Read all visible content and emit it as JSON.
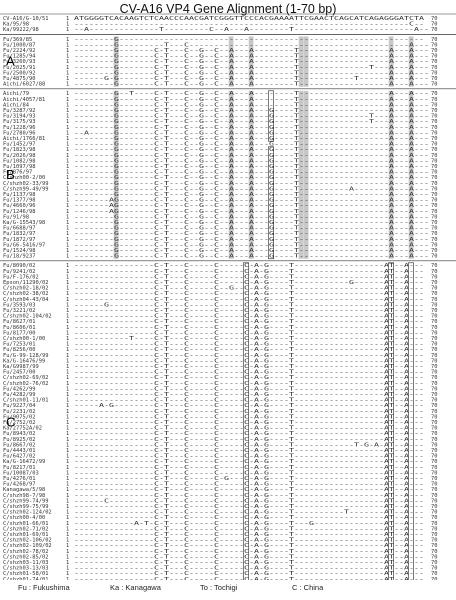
{
  "title": "CV-A16 VP4 Gene Alignment (1-70 bp)",
  "reference": {
    "name": "CV-A16/G-10/51",
    "start": "1",
    "end": "70",
    "sequence": "ATGGGGTCACAAGTCTCAACCCAACGATCGGGTTCCCACGAAAATTCGAACTCAGCATCAGAGGGATCTA"
  },
  "groups": [
    {
      "label": "",
      "rows": [
        {
          "name": "Ka/95/98",
          "seq": "-------------------------------------------------------------------C--"
        },
        {
          "name": "Ka/99222/98",
          "seq": "--A--------------T---------C--A---A--------T------------------------A--"
        }
      ]
    },
    {
      "label": "A",
      "rows": [
        {
          "name": "Fu/369/85",
          "seq": "--------G-------------------------------------------------------------"
        },
        {
          "name": "Fu/1000/87",
          "seq": "--------G---------T---C--------------------------------------------A---"
        },
        {
          "name": "Fu/2224/92",
          "seq": "--------G-------C-T---C--G--C--A---A--------T------------------A---A---"
        },
        {
          "name": "Fu/1285/94",
          "seq": "--------G-------C-T---C--G--C--A---A--------T------------------A---A---"
        },
        {
          "name": "Fu/3260/93",
          "seq": "--------G-------C-T---C--G--C--A---A--------T------------------A---A---"
        },
        {
          "name": "Fu/2025/91",
          "seq": "--------G-------C-T---C--G--C--A---A--------T--------------T---A---A---"
        },
        {
          "name": "Fu/2500/92",
          "seq": "--------G-------C-T---C--G--C--A---A--------T------------------A---A---"
        },
        {
          "name": "Fu/4875/90",
          "seq": "------G-G-------C-T---C--G--C--A---A--------T-----------T------A---A---"
        },
        {
          "name": "Aichi/6027/88",
          "seq": "--------G-------C-T---C--G--C--A---A--------T------------------A---A---"
        }
      ]
    },
    {
      "label": "B",
      "rows": [
        {
          "name": "Aichi/79",
          "seq": "--------G--T----C-T---C--G--C--A---A--------T------------------A---A---"
        },
        {
          "name": "Aichi/4057/81",
          "seq": "--------G-------C-T---C--G--C--A---A--------T------------------A---A---"
        },
        {
          "name": "Aichi/84",
          "seq": "--------G-------C-T---C--G--C--A---A--------T------------------A---A---"
        },
        {
          "name": "Fu/3287/92",
          "seq": "--------G-------C-T---C--G--C--A---A---G----T------------------A---A---"
        },
        {
          "name": "Fu/3194/93",
          "seq": "--------G-------C-T---C--G--C--A---A---G----T--------------T---A---A---"
        },
        {
          "name": "Fu/3175/93",
          "seq": "--------G-------C-T---C--G--C--A---A---G----T--------------T---A---A---"
        },
        {
          "name": "Fu/1228/96",
          "seq": "--------G-------C-T---C--G--C--A---A---G----T------------------A---A---"
        },
        {
          "name": "Fu/2780/96",
          "seq": "--A-----G-------C-T---C--G--C--A---A---G----T------------------A---A---"
        },
        {
          "name": "Aichi/1766/81",
          "seq": "--------G-------C-T---C--G--C--A---A---G----T------------------A---A---"
        },
        {
          "name": "Fu/1452/97",
          "seq": "--------G-------C-T---C--G--C--A---A---G----T------------------A---A---"
        },
        {
          "name": "Fu/1823/98",
          "seq": "--------G-------C-T---C--G--C--A---A---G----T------------------A---A---"
        },
        {
          "name": "Fu/2026/98",
          "seq": "--------G-------C-T---C--G--C--A---A---G----T------------------A---A---"
        },
        {
          "name": "Fu/1082/98",
          "seq": "--------G-------C-T---C--G--C--A---A---G----T------------------A---A---"
        },
        {
          "name": "Fu/1097/98",
          "seq": "--------G-------C-T---C--G--C--A---A---G----T------------------A---A---"
        },
        {
          "name": "Fu/876/97",
          "seq": "--------G-------C-T---C--G--C--A---A---G----T------------------A---A---"
        },
        {
          "name": "C/shzh00-2/00",
          "seq": "--------G-------C-T---C--G--C--A---A---G----T------------------A---A---"
        },
        {
          "name": "C/shzh02-33/99",
          "seq": "--------G-------C-T---C--G--C--A---A---G----T------------------A---A---"
        },
        {
          "name": "C/shzh99-49/99",
          "seq": "--------G-------C-T---C--G--C--A---A---G----T----------A-------A---A---"
        },
        {
          "name": "Fu/1137/98",
          "seq": "--------G-------C-T---C--G--C--A---A---G----T------------------A---A---"
        },
        {
          "name": "Fu/1377/98",
          "seq": "-------AG-------C-T---C--G--C--A---A---G----T------------------A---A---"
        },
        {
          "name": "Fu/4660/96",
          "seq": "-------AG-------C-T---C--G--C--A---A---G----T------------------A---A---"
        },
        {
          "name": "Fu/1246/98",
          "seq": "-------AG-------C-T---C--G--C--A---A---G----T------------------A---A---"
        },
        {
          "name": "Fu/91/98",
          "seq": "--------G-------C-T---C--G--C--A---A---G----T------------------A---A---"
        },
        {
          "name": "Ka/G-15543/98",
          "seq": "--------G-------C-T---C--G--C--A---A---G----T------------------A---A---"
        },
        {
          "name": "Fu/6688/97",
          "seq": "--------G-------C-T---C--G--C--A---A---G----T------------------A---A---"
        },
        {
          "name": "Fu/1832/97",
          "seq": "--------G-------C-T---C--G--C--A---A---G----T------------------A---A---"
        },
        {
          "name": "Fu/1872/97",
          "seq": "--------G-------C-T---C--G--C--A---A---G----T------------------A---A---"
        },
        {
          "name": "Fu/G6-5416/97",
          "seq": "--------G-------C-T---C--G--C--A---A---G----T------------------A---A---"
        },
        {
          "name": "Fu/1524/98",
          "seq": "--------G-------C-T---C--G--C--A---A---G----T------------------A---A---"
        },
        {
          "name": "Fu/18/9237",
          "seq": "--------G-------C-T---C--G--C--A---A---G----T------------------A---A---"
        }
      ]
    },
    {
      "label": "C",
      "rows": [
        {
          "name": "Fu/8090/02",
          "seq": "----------------C-T---C-----C-----C-A-G----T------------------AT--A---"
        },
        {
          "name": "Fu/9241/02",
          "seq": "----------------C-T---C-----C-----C-A-G----T------------------AT--A---"
        },
        {
          "name": "Fu/F-176/02",
          "seq": "----------------C-T---C-----C-----C-A-G----T------------------AT--A---"
        },
        {
          "name": "Epson/11290/02",
          "seq": "----------------C-T---C-----C-----C-A-G----T-----------G------AT--A---"
        },
        {
          "name": "C/shzh02-18/02",
          "seq": "----------------C-T---C-----C--G--C-A-G----T------------------AT--A---"
        },
        {
          "name": "C/shzh02-38/02",
          "seq": "----------------C-T---C-----C-----C-A-G----T------------------AT--A---"
        },
        {
          "name": "C/shzh04-43/04",
          "seq": "----------------C-T---C-----C-----C-A-G----T------------------AT--A---"
        },
        {
          "name": "Fu/3593/03",
          "seq": "------G---------C-T---C-----C-----C-A-G----T------------------AT--A---"
        },
        {
          "name": "Fu/3221/02",
          "seq": "----------------C-T---C-----C-----C-A-G----T------------------AT--A---"
        },
        {
          "name": "C/shzh02-104/02",
          "seq": "----------------C-T---C-----C-----C-A-G----T------------------AT--A---"
        },
        {
          "name": "Fu/8627/01",
          "seq": "----------------C-T---C-----C-----C-A-G----T------------------AT--A---"
        },
        {
          "name": "Fu/8606/01",
          "seq": "----------------C-T---C-----C-----C-A-G----T------------------AT--A---"
        },
        {
          "name": "Fu/8177/00",
          "seq": "----------------C-T---C-----C-----C-A-G----T------------------AT--A---"
        },
        {
          "name": "C/shzh00-1/00",
          "seq": "-----------T----C-T---C-----C-----C-A-G----T------------------AT--A---"
        },
        {
          "name": "Fu/7253/01",
          "seq": "----------------C-T---C-----C-----C-A-G----T------------------AT--A---"
        },
        {
          "name": "Fu/8256/00",
          "seq": "----------------C-T---C-----C-----C-A-G----T------------------AT--A---"
        },
        {
          "name": "Fu/G-99-128/99",
          "seq": "----------------C-T---C-----C-----C-A-G----T------------------AT--A---"
        },
        {
          "name": "Ka/G-16476/99",
          "seq": "----------------C-T---C-----C-----C-A-G----T------------------AT--A---"
        },
        {
          "name": "Ka/G9987/99",
          "seq": "----------------C-T---C-----C-----C-A-G----T------------------AT--A---"
        },
        {
          "name": "Fu/2457/00",
          "seq": "----------------C-T---C-----C-----C-A-G----T------------------AT--A---"
        },
        {
          "name": "C/shzh02-69/02",
          "seq": "----------------C-T---C-----C-----C-A-G----T------------------AT--A---"
        },
        {
          "name": "C/shzh02-76/02",
          "seq": "----------------C-T---C-----C-----C-A-G----T------------------AT--A---"
        },
        {
          "name": "Fu/4262/99",
          "seq": "----------------C-T---C-----C-----C-A-G----T------------------AT--A---"
        },
        {
          "name": "Fu/4282/99",
          "seq": "----------------C-T---C-----C-----C-A-G----T------------------AT--A---"
        },
        {
          "name": "C/shzh01-11/01",
          "seq": "----------------C-T---C-----C-----C-A-G----T------------------AT--A---"
        },
        {
          "name": "Fu/9227/04",
          "seq": "-----A-G--------C-T---C-----C-----C-A-G----T------------------AT--A---"
        },
        {
          "name": "Fu/2231/02",
          "seq": "----------------C-T---C-----C-----C-A-G----T------------------AT--A---"
        },
        {
          "name": "Fu/9075/02",
          "seq": "----------------C-T---C-----C-----C-A-G----T------------------AT--A---"
        },
        {
          "name": "Fu/2752/02",
          "seq": "----------------C-T---C-----C-----C-A-G----T------------------AT--A---"
        },
        {
          "name": "Ka/27752A/02",
          "seq": "----------------C-T---C-----C-----C-A-G----T------------------AT--A---"
        },
        {
          "name": "Fu/8943/02",
          "seq": "----------------C-T---C-----C-----C-A-G----T------------------AT--A---"
        },
        {
          "name": "Fu/8925/02",
          "seq": "----------------C-T---C-----C-----C-A-G----T------------------AT--A---"
        },
        {
          "name": "Fu/8667/02",
          "seq": "----------------C-T---C-----C-----C-A-G----T------------T-G-A-AT--A---"
        },
        {
          "name": "Fu/4443/01",
          "seq": "----------------C-T---C-----C-----C-A-G----T------------------AT--A---"
        },
        {
          "name": "Fu/6427/02",
          "seq": "----------------C-T---C-----C-----C-A-G----T------------------AT--A---"
        },
        {
          "name": "Ka/G-16472/99",
          "seq": "----------------C-T---C-----C-----C-A-G----T------------------AT--A---"
        },
        {
          "name": "Fu/8217/01",
          "seq": "----------------C-T---C-----C-----C-A-G----T------------------AT--A---"
        },
        {
          "name": "Fu/10087/03",
          "seq": "----------------C-T---C-----C-----C-A-G----T------------------AT--A---"
        },
        {
          "name": "Fu/4276/01",
          "seq": "----------------C-T---C-----C-G---C-A-G----T------------------AT--A---"
        },
        {
          "name": "Fu/4268/97",
          "seq": "----------------C-T---C-----C-----C-A-G----T------------------AT--A---"
        },
        {
          "name": "Kanagawa/5/98",
          "seq": "----------------C-T---C-----C-----C-A-G----T------------------AT--A---"
        },
        {
          "name": "C/shzh98-7/98",
          "seq": "----------------C-T---C-----C-----C-A-G----T------------------AT--A---"
        },
        {
          "name": "C/shzh99-74/99",
          "seq": "------C---------C-T---C-----C-----C-A-G----T------------------AT--A---"
        },
        {
          "name": "C/shzh99-75/99",
          "seq": "----------------C-T---C-----C-----C-A-G----T------------------AT--A---"
        },
        {
          "name": "C/shzh02-124/02",
          "seq": "----------------C-T---C-----C-----C-A-G----T----------T-------AT--A---"
        },
        {
          "name": "C/shzh00-4/00",
          "seq": "----------------C-T---C-----C-----C-A-G----T------------------AT--A---"
        },
        {
          "name": "C/shzh01-66/01",
          "seq": "------------A-T-C-T---C-----C-----C-A-G----T---G--------------AT--A---"
        },
        {
          "name": "C/shzh02-71/02",
          "seq": "----------------C-T---C-----C-----C-A-G----T------------------AT--A---"
        },
        {
          "name": "C/shzh01-69/01",
          "seq": "----------------C-T---C-----C-----C-A-G----T------------------AT--A---"
        },
        {
          "name": "C/shzh02-106/02",
          "seq": "----------------C-T---C-----C-----C-A-G----T------------------AT--A---"
        },
        {
          "name": "C/shzh02-109/02",
          "seq": "----------------C-T---C-----C-----C-A-G----T------------------AT--A---"
        },
        {
          "name": "C/shzh02-78/02",
          "seq": "----------------C-T---C-----C-----C-A-G----T------------------AT--A---"
        },
        {
          "name": "C/shzh02-85/02",
          "seq": "----------------C-T---C-----C-----C-A-G----T------------------AT--A---"
        },
        {
          "name": "C/shzh03-11/03",
          "seq": "----------------C-T---C-----C-----C-A-G----T------------------AT--A---"
        },
        {
          "name": "C/shzh03-13/03",
          "seq": "----------------C-T---C-----C-----C-A-G----T------------------AT--A---"
        },
        {
          "name": "C/shzh01-58/01",
          "seq": "----------------C-T---C-----C-----C-A-G----T------------------AT--A---"
        },
        {
          "name": "C/shzh01-74/01",
          "seq": "----------------C-T---C-----C-----C-A-G----T------------------AT--A---"
        }
      ]
    }
  ],
  "legend": [
    "Fu : Fukushima",
    "Ka : Kanagawa",
    "To : Tochigi",
    "C : China"
  ],
  "shade_color": "#c8c8c8",
  "box_color": "#222222",
  "divider_color": "#333333"
}
